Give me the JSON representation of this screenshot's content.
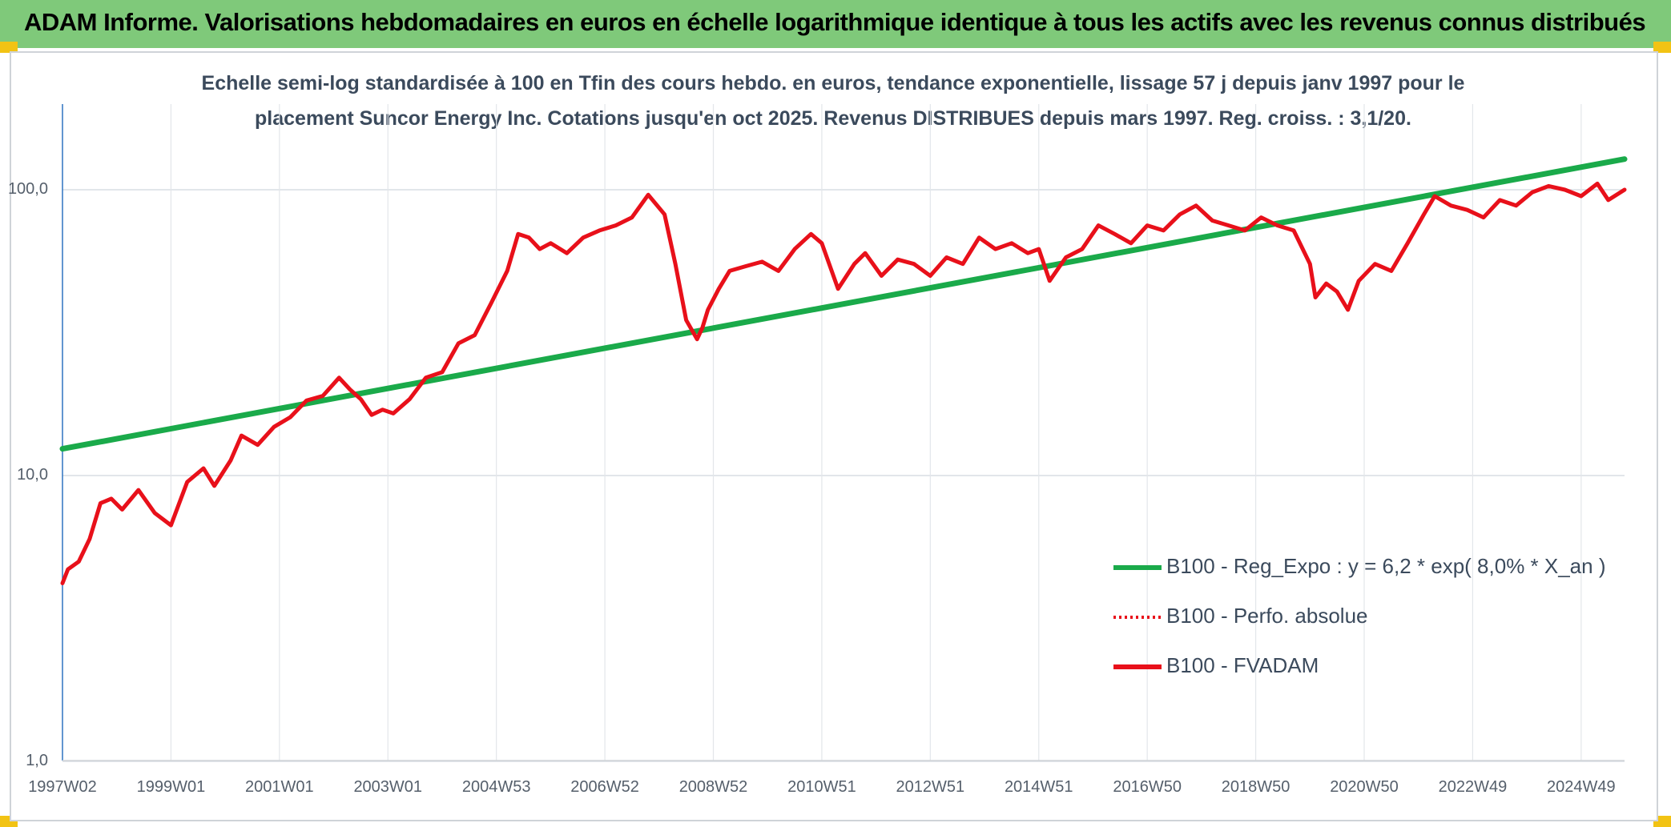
{
  "header": {
    "title": "ADAM Informe. Valorisations hebdomadaires en euros en échelle logarithmique identique à tous les actifs avec les revenus connus distribués"
  },
  "subtitle": {
    "line1": "Echelle semi-log standardisée à 100 en Tfin des cours hebdo. en euros, tendance exponentielle, lissage 57 j depuis janv 1997 pour le",
    "line2": "placement Suncor Energy Inc. Cotations jusqu'en oct 2025. Revenus DISTRIBUES depuis mars 1997. Reg. croiss. : 3,1/20."
  },
  "colors": {
    "header": "#7fc97a",
    "accent": "#f2c314",
    "regression": "#1aaa4a",
    "price": "#e8101a",
    "grid": "#d9dde3"
  },
  "chart_data": {
    "type": "line",
    "y_scale": "log",
    "ylim": [
      1,
      180
    ],
    "xlim": [
      1997.0,
      2025.8
    ],
    "grid": true,
    "legend_position": "right",
    "y_ticks": [
      {
        "value": 1,
        "label": "1,0"
      },
      {
        "value": 10,
        "label": "10,0"
      },
      {
        "value": 100,
        "label": "100,0"
      }
    ],
    "x_ticks": [
      {
        "value": 1997.0,
        "label": "1997W02"
      },
      {
        "value": 1999.0,
        "label": "1999W01"
      },
      {
        "value": 2001.0,
        "label": "2001W01"
      },
      {
        "value": 2003.0,
        "label": "2003W01"
      },
      {
        "value": 2005.0,
        "label": "2004W53"
      },
      {
        "value": 2007.0,
        "label": "2006W52"
      },
      {
        "value": 2009.0,
        "label": "2008W52"
      },
      {
        "value": 2011.0,
        "label": "2010W51"
      },
      {
        "value": 2013.0,
        "label": "2012W51"
      },
      {
        "value": 2015.0,
        "label": "2014W51"
      },
      {
        "value": 2017.0,
        "label": "2016W50"
      },
      {
        "value": 2019.0,
        "label": "2018W50"
      },
      {
        "value": 2021.0,
        "label": "2020W50"
      },
      {
        "value": 2023.0,
        "label": "2022W49"
      },
      {
        "value": 2025.0,
        "label": "2024W49"
      }
    ],
    "series": [
      {
        "name": "B100 - Reg_Expo : y = 6,2 * exp( 8,0% *  X_an )",
        "style": "solid-thick",
        "color": "#1aaa4a",
        "x": [
          1997.0,
          2025.8
        ],
        "y": [
          12.4,
          128
        ]
      },
      {
        "name": "B100 - Perfo. absolue",
        "style": "dotted",
        "color": "#e8101a",
        "x": [],
        "y": []
      },
      {
        "name": "B100 - FVADAM",
        "style": "solid",
        "color": "#e8101a",
        "x": [
          1997.0,
          1997.1,
          1997.3,
          1997.5,
          1997.7,
          1997.9,
          1998.1,
          1998.4,
          1998.7,
          1999.0,
          1999.3,
          1999.6,
          1999.8,
          2000.1,
          2000.3,
          2000.6,
          2000.9,
          2001.2,
          2001.5,
          2001.8,
          2002.1,
          2002.3,
          2002.5,
          2002.7,
          2002.9,
          2003.1,
          2003.4,
          2003.7,
          2004.0,
          2004.3,
          2004.6,
          2004.9,
          2005.2,
          2005.4,
          2005.6,
          2005.8,
          2006.0,
          2006.3,
          2006.6,
          2006.9,
          2007.2,
          2007.5,
          2007.8,
          2008.1,
          2008.3,
          2008.5,
          2008.7,
          2008.8,
          2008.9,
          2009.1,
          2009.3,
          2009.6,
          2009.9,
          2010.2,
          2010.5,
          2010.8,
          2011.0,
          2011.3,
          2011.6,
          2011.8,
          2012.1,
          2012.4,
          2012.7,
          2013.0,
          2013.3,
          2013.6,
          2013.9,
          2014.2,
          2014.5,
          2014.8,
          2015.0,
          2015.2,
          2015.5,
          2015.8,
          2016.1,
          2016.4,
          2016.7,
          2017.0,
          2017.3,
          2017.6,
          2017.9,
          2018.2,
          2018.5,
          2018.8,
          2019.1,
          2019.4,
          2019.7,
          2020.0,
          2020.1,
          2020.3,
          2020.5,
          2020.7,
          2020.9,
          2021.2,
          2021.5,
          2021.8,
          2022.1,
          2022.3,
          2022.6,
          2022.9,
          2023.2,
          2023.5,
          2023.8,
          2024.1,
          2024.4,
          2024.7,
          2025.0,
          2025.3,
          2025.5,
          2025.8
        ],
        "y": [
          4.2,
          4.7,
          5.0,
          6.0,
          8.0,
          8.3,
          7.6,
          8.9,
          7.4,
          6.7,
          9.5,
          10.6,
          9.2,
          11.3,
          13.8,
          12.8,
          14.8,
          16.0,
          18.3,
          19.0,
          22.0,
          20.0,
          18.5,
          16.3,
          17.0,
          16.5,
          18.5,
          22.0,
          23.0,
          29.0,
          31.0,
          40.0,
          52.0,
          70.0,
          68.0,
          62.0,
          65.0,
          60.0,
          68.0,
          72.0,
          75.0,
          80.0,
          96.0,
          82.0,
          55.0,
          35.0,
          30.0,
          33.0,
          38.0,
          45.0,
          52.0,
          54.0,
          56.0,
          52.0,
          62.0,
          70.0,
          65.0,
          45.0,
          55.0,
          60.0,
          50.0,
          57.0,
          55.0,
          50.0,
          58.0,
          55.0,
          68.0,
          62.0,
          65.0,
          60.0,
          62.0,
          48.0,
          58.0,
          62.0,
          75.0,
          70.0,
          65.0,
          75.0,
          72.0,
          82.0,
          88.0,
          78.0,
          75.0,
          72.0,
          80.0,
          75.0,
          72.0,
          55.0,
          42.0,
          47.0,
          44.0,
          38.0,
          48.0,
          55.0,
          52.0,
          65.0,
          82.0,
          95.0,
          88.0,
          85.0,
          80.0,
          92.0,
          88.0,
          98.0,
          103.0,
          100.0,
          95.0,
          105.0,
          92.0,
          100.0
        ]
      }
    ]
  }
}
